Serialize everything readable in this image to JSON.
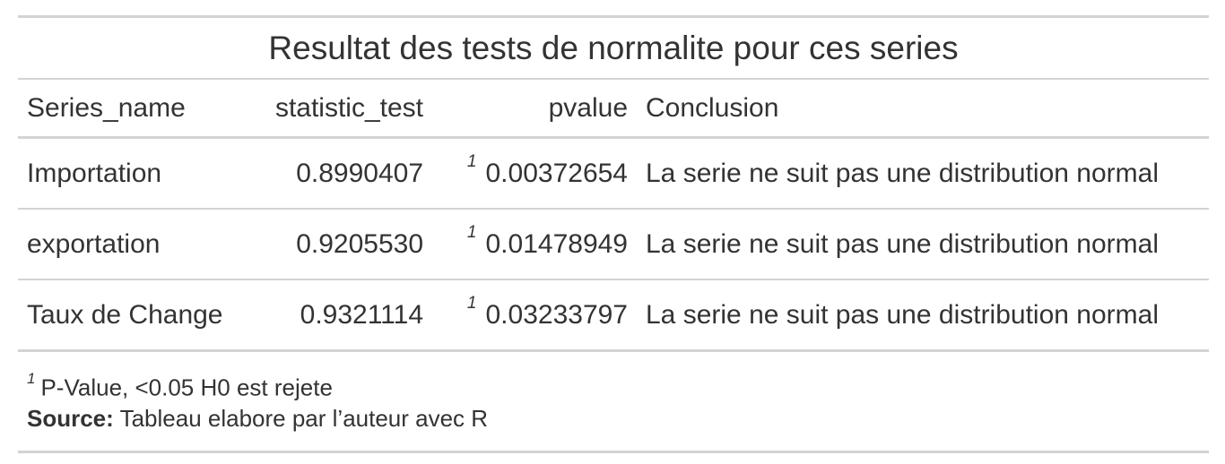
{
  "title": "Resultat des tests de normalite pour ces series",
  "columns": {
    "series_name": "Series_name",
    "statistic_test": "statistic_test",
    "pvalue": "pvalue",
    "conclusion": "Conclusion"
  },
  "rows": [
    {
      "series_name": "Importation",
      "statistic_test": "0.8990407",
      "pvalue_mark": "1",
      "pvalue": "0.00372654",
      "conclusion": "La serie ne suit pas une distribution normal"
    },
    {
      "series_name": "exportation",
      "statistic_test": "0.9205530",
      "pvalue_mark": "1",
      "pvalue": "0.01478949",
      "conclusion": "La serie ne suit pas une distribution normal"
    },
    {
      "series_name": "Taux de Change",
      "statistic_test": "0.9321114",
      "pvalue_mark": "1",
      "pvalue": "0.03233797",
      "conclusion": "La serie ne suit pas une distribution normal"
    }
  ],
  "footnote": {
    "mark": "1",
    "text": "P-Value, <0.05 H0 est rejete"
  },
  "source": {
    "label": "Source:",
    "text": "Tableau elabore par l’auteur avec R"
  }
}
